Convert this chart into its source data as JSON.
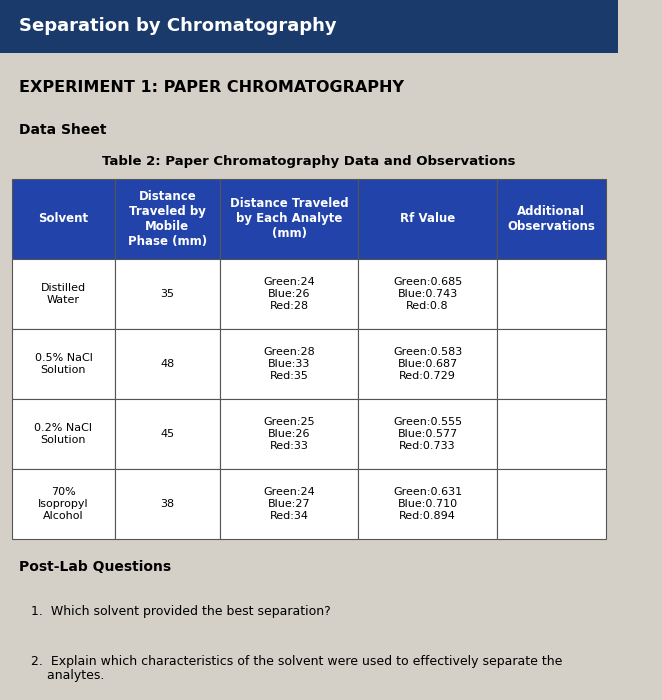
{
  "header_title": "Separation by Chromatography",
  "header_bg": "#1a3a6b",
  "header_text_color": "#ffffff",
  "page_bg": "#d4d0c8",
  "content_bg": "#e8e4dc",
  "experiment_title": "EXPERIMENT 1: PAPER CHROMATOGRAPHY",
  "section_label": "Data Sheet",
  "table_title": "Table 2: Paper Chromatography Data and Observations",
  "table_header_bg": "#2244aa",
  "table_header_text": "#ffffff",
  "table_row_bg": "#ffffff",
  "table_border": "#555555",
  "col_headers": [
    "Solvent",
    "Distance\nTraveled by\nMobile\nPhase (mm)",
    "Distance Traveled\nby Each Analyte\n(mm)",
    "Rf Value",
    "Additional\nObservations"
  ],
  "rows": [
    {
      "solvent": "Distilled\nWater",
      "mobile_phase": "35",
      "analyte": "Green:24\nBlue:26\nRed:28",
      "rf": "Green:0.685\nBlue:0.743\nRed:0.8",
      "obs": ""
    },
    {
      "solvent": "0.5% NaCl\nSolution",
      "mobile_phase": "48",
      "analyte": "Green:28\nBlue:33\nRed:35",
      "rf": "Green:0.583\nBlue:0.687\nRed:0.729",
      "obs": ""
    },
    {
      "solvent": "0.2% NaCl\nSolution",
      "mobile_phase": "45",
      "analyte": "Green:25\nBlue:26\nRed:33",
      "rf": "Green:0.555\nBlue:0.577\nRed:0.733",
      "obs": ""
    },
    {
      "solvent": "70%\nIsopropyl\nAlcohol",
      "mobile_phase": "38",
      "analyte": "Green:24\nBlue:27\nRed:34",
      "rf": "Green:0.631\nBlue:0.710\nRed:0.894",
      "obs": ""
    }
  ],
  "postlab_title": "Post-Lab Questions",
  "q1": "1.  Which solvent provided the best separation?",
  "q2": "2.  Explain which characteristics of the solvent were used to effectively separate the\n    analytes."
}
